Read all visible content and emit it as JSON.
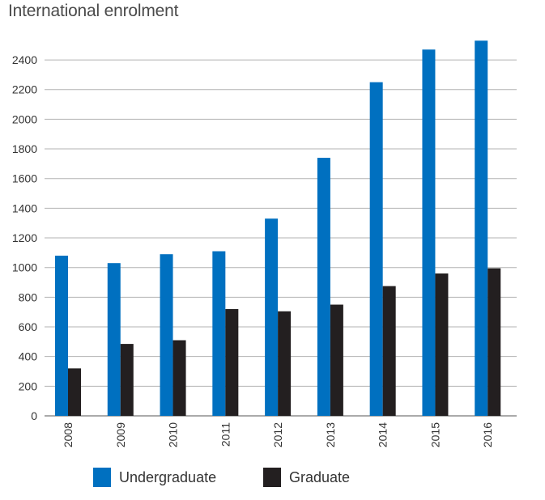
{
  "chart_data": {
    "type": "bar",
    "title": "International enrolment",
    "categories": [
      "2008",
      "2009",
      "2010",
      "2011",
      "2012",
      "2013",
      "2014",
      "2015",
      "2016"
    ],
    "series": [
      {
        "name": "Undergraduate",
        "color": "#0070c0",
        "values": [
          1080,
          1030,
          1090,
          1110,
          1330,
          1740,
          2250,
          2470,
          2530
        ]
      },
      {
        "name": "Graduate",
        "color": "#231f20",
        "values": [
          320,
          485,
          510,
          720,
          705,
          750,
          875,
          960,
          995
        ]
      }
    ],
    "yticks": [
      0,
      200,
      400,
      600,
      800,
      1000,
      1200,
      1400,
      1600,
      1800,
      2000,
      2200,
      2400
    ],
    "ylim": [
      0,
      2500
    ],
    "grid": true,
    "legend_position": "bottom"
  }
}
